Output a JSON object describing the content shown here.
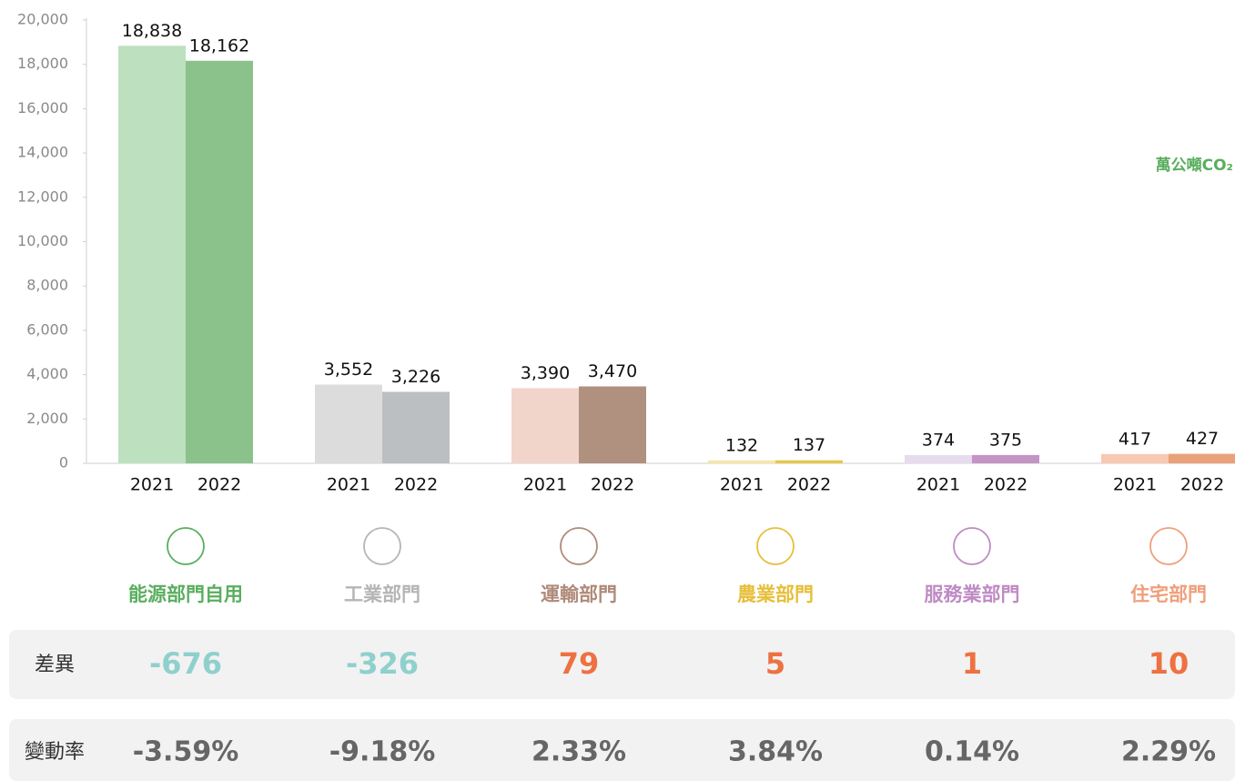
{
  "chart_data": {
    "type": "bar",
    "unit_label": "萬公噸CO₂",
    "categories": [
      "能源部門自用",
      "工業部門",
      "運輸部門",
      "農業部門",
      "服務業部門",
      "住宅部門"
    ],
    "category_colors": [
      "#5aae5f",
      "#b5b5b5",
      "#b08a7a",
      "#e6bf3a",
      "#bf8bc4",
      "#ef9f7c"
    ],
    "series": [
      {
        "name": "2021",
        "colors": [
          "#bde0bf",
          "#dcdcdc",
          "#f1d5cb",
          "#f6e7a6",
          "#e6dcee",
          "#f8c8b2"
        ],
        "values": [
          18838,
          3552,
          3390,
          132,
          374,
          417
        ],
        "value_labels": [
          "18,838",
          "3,552",
          "3,390",
          "132",
          "374",
          "417"
        ]
      },
      {
        "name": "2022",
        "colors": [
          "#8bc28c",
          "#bcbfc1",
          "#b0907f",
          "#e6c84a",
          "#c394c4",
          "#e9a179"
        ],
        "values": [
          18162,
          3226,
          3470,
          137,
          375,
          427
        ],
        "value_labels": [
          "18,162",
          "3,226",
          "3,470",
          "137",
          "375",
          "427"
        ]
      }
    ],
    "ylim": [
      0,
      20000
    ],
    "yticks": [
      0,
      {
        "value": 2000,
        "label": "2,000"
      },
      {
        "value": 4000,
        "label": "4,000"
      },
      {
        "value": 6000,
        "label": "6,000"
      },
      {
        "value": 8000,
        "label": "8,000"
      },
      {
        "value": 10000,
        "label": "10,000"
      },
      {
        "value": 12000,
        "label": "12,000"
      },
      {
        "value": 14000,
        "label": "14,000"
      },
      {
        "value": 16000,
        "label": "16,000"
      },
      {
        "value": 18000,
        "label": "18,000"
      },
      {
        "value": 20000,
        "label": "20,000"
      }
    ],
    "difference": {
      "label": "差異",
      "values": [
        -676,
        -326,
        79,
        5,
        1,
        10
      ],
      "positive_color": "#ee7142",
      "negative_color": "#8fd0cc"
    },
    "change_rate": {
      "label": "變動率",
      "values": [
        -3.59,
        -9.18,
        2.33,
        3.84,
        0.14,
        2.29
      ],
      "value_labels": [
        "-3.59%",
        "-9.18%",
        "2.33%",
        "3.84%",
        "0.14%",
        "2.29%"
      ]
    }
  }
}
